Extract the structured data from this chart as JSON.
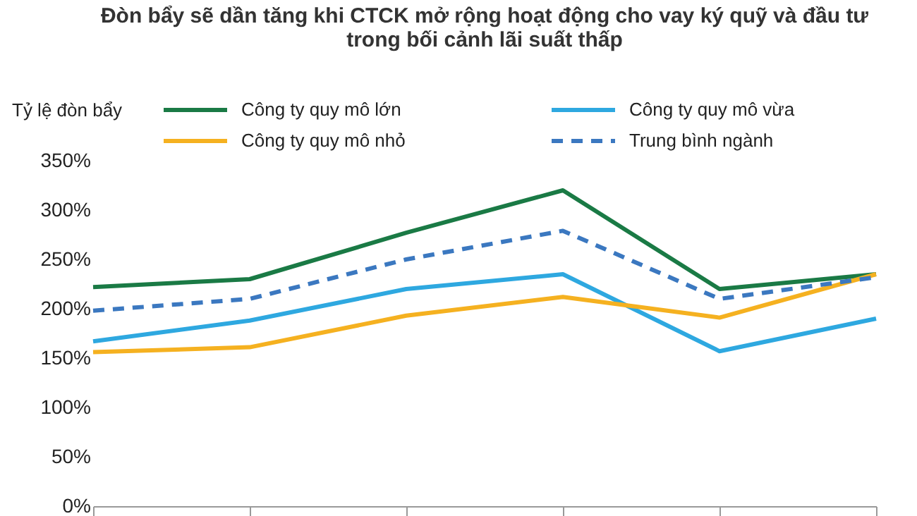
{
  "chart_data": {
    "type": "line",
    "title": "Đòn bẩy sẽ dần tăng khi CTCK mở rộng hoạt động cho vay ký quỹ và đầu tư trong bối cảnh lãi suất thấp",
    "ylabel": "Tỷ lệ đòn bẩy",
    "categories": [
      null,
      null,
      null,
      null,
      null,
      null
    ],
    "series": [
      {
        "name": "Công ty quy mô lớn",
        "color": "#1a7a45",
        "values": [
          222,
          230,
          277,
          320,
          220,
          235
        ]
      },
      {
        "name": "Công ty quy mô vừa",
        "color": "#2ea8e0",
        "values": [
          167,
          188,
          220,
          235,
          157,
          190
        ]
      },
      {
        "name": "Công ty quy mô nhỏ",
        "color": "#f5b120",
        "values": [
          156,
          161,
          193,
          212,
          191,
          235
        ]
      },
      {
        "name": "Trung bình ngành",
        "color": "#3b78c0",
        "values": [
          198,
          210,
          250,
          279,
          210,
          232
        ],
        "line_style": "dashed"
      }
    ],
    "ylim": [
      0,
      350
    ],
    "yticks": [
      {
        "value": 0,
        "label": "0%"
      },
      {
        "value": 50,
        "label": "50%"
      },
      {
        "value": 100,
        "label": "100%"
      },
      {
        "value": 150,
        "label": "150%"
      },
      {
        "value": 200,
        "label": "200%"
      },
      {
        "value": 250,
        "label": "250%"
      },
      {
        "value": 300,
        "label": "300%"
      },
      {
        "value": 350,
        "label": "350%"
      }
    ],
    "tick_labels": "y",
    "grid": false,
    "legend": "top",
    "marker": "none"
  }
}
